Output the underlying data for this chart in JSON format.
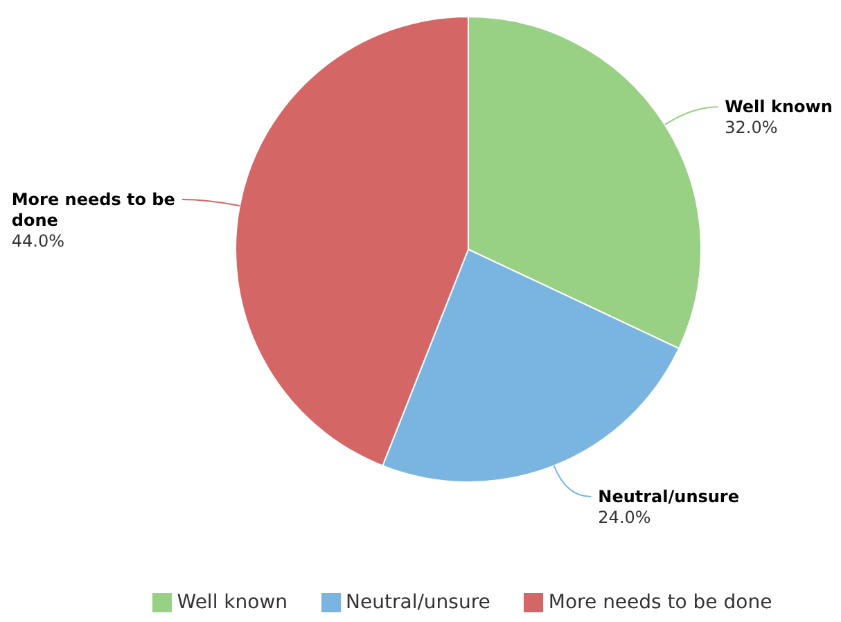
{
  "chart_data": {
    "type": "pie",
    "categories": [
      "Well known",
      "Neutral/unsure",
      "More needs to be done"
    ],
    "values": [
      32,
      24,
      44
    ],
    "colors": [
      "#98d084",
      "#7ab4e0",
      "#d56666"
    ],
    "value_labels": [
      "32.0%",
      "24.0%",
      "44.0%"
    ],
    "legend": "bottom"
  }
}
